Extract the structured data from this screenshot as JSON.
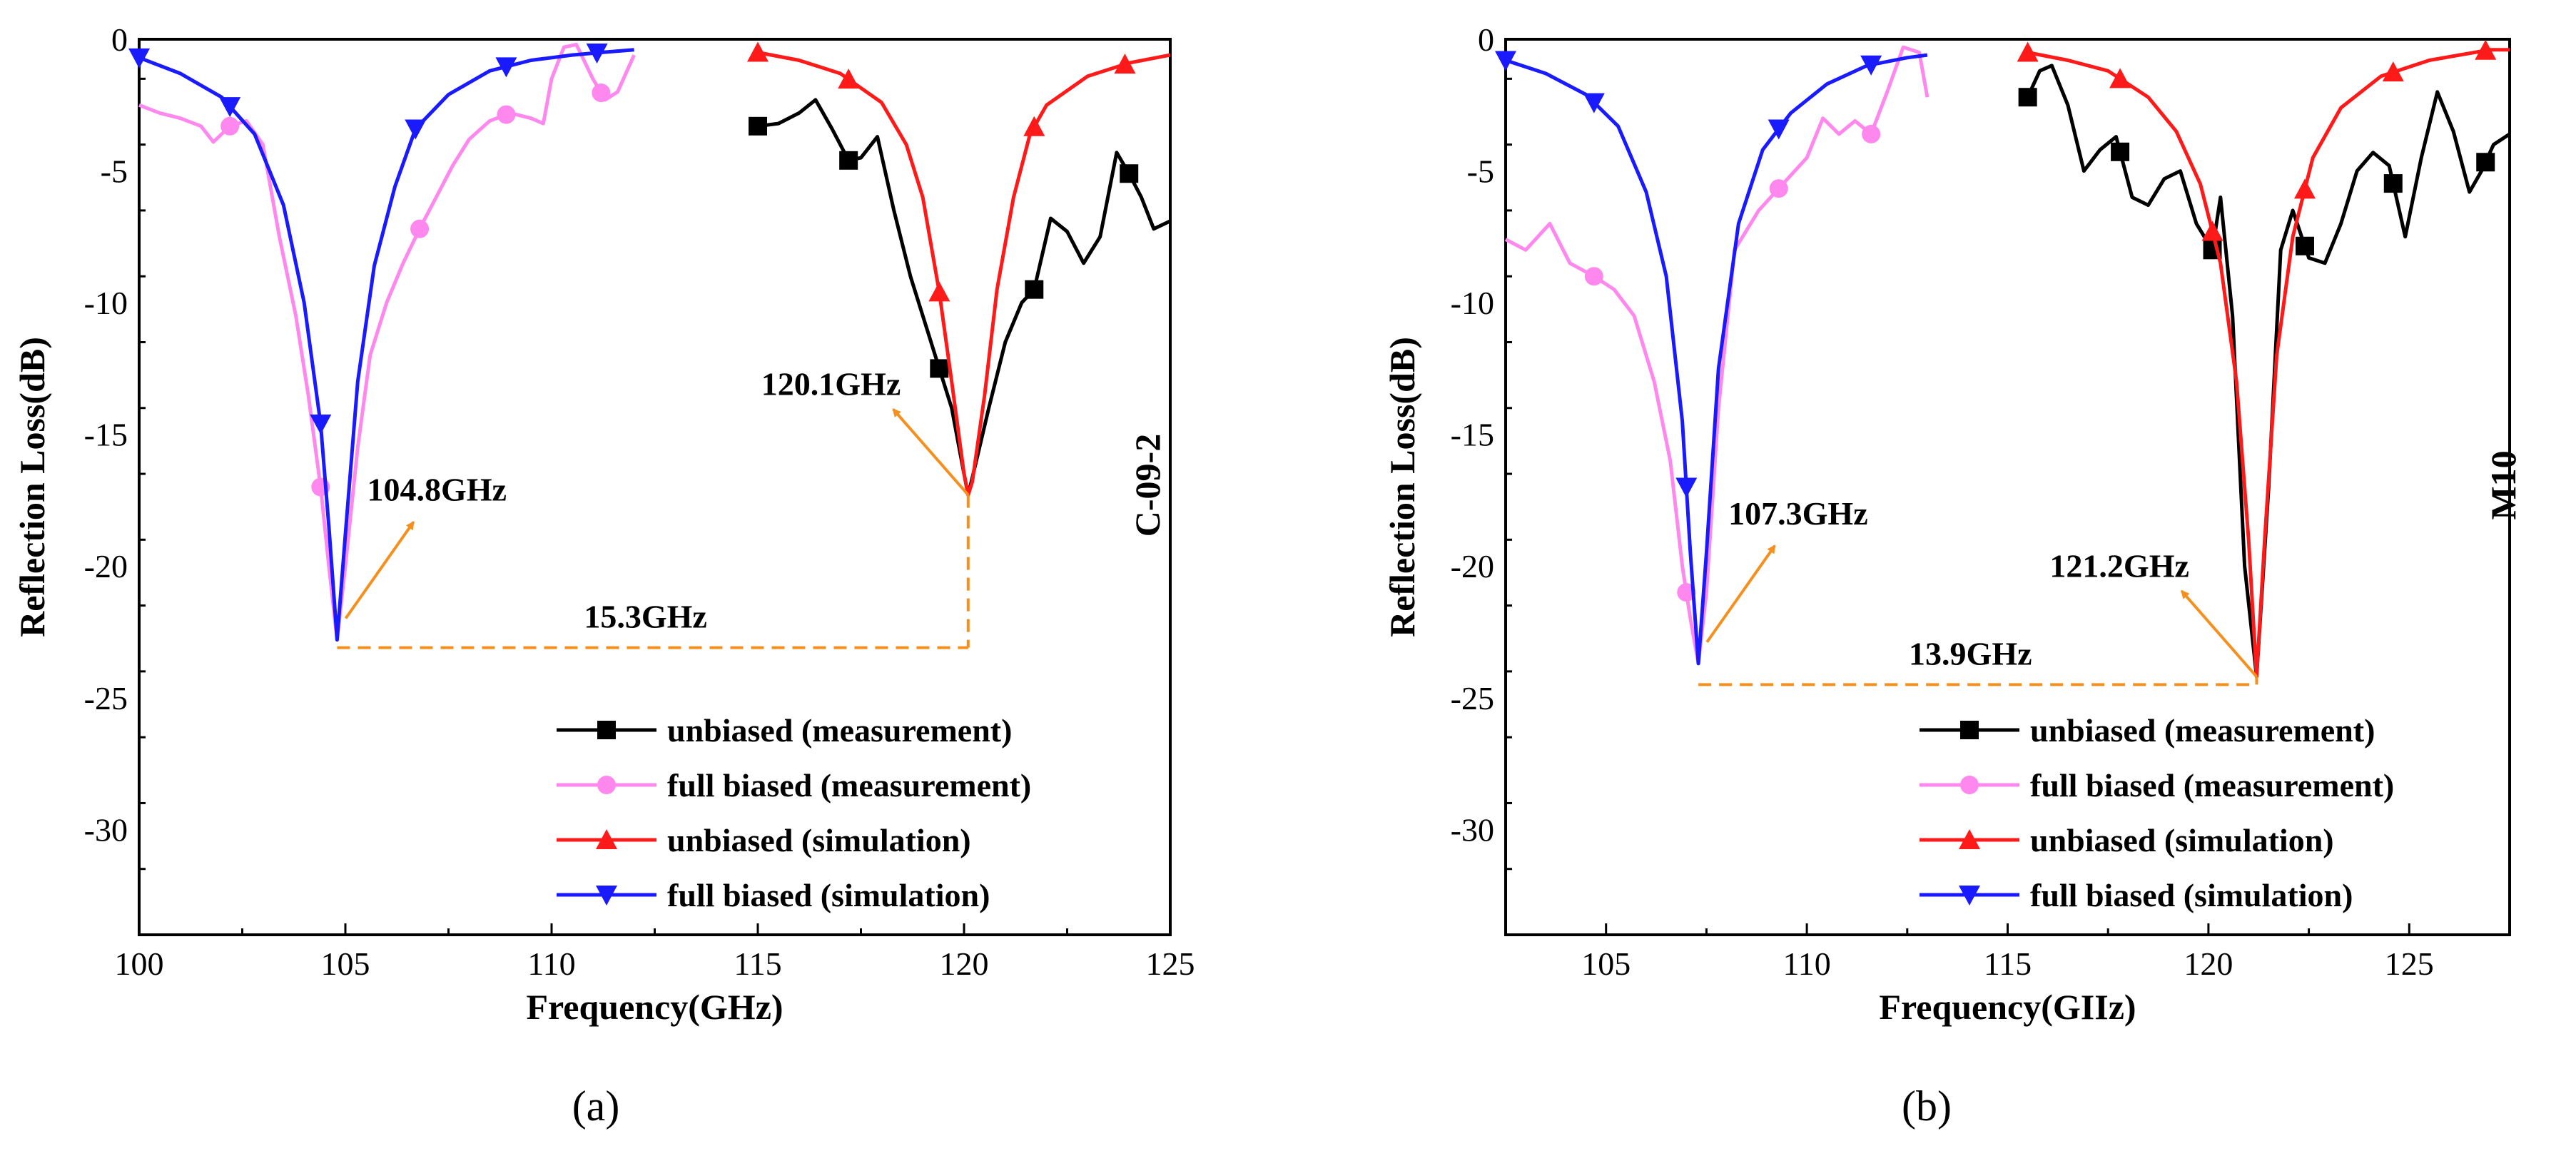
{
  "colors": {
    "unbiased_measurement": "#000000",
    "full_biased_measurement": "#ff88ee",
    "unbiased_simulation": "#ff1a1a",
    "full_biased_simulation": "#1a1aff",
    "annotation": "#f5901e"
  },
  "panels": [
    {
      "panel_label": "(a)",
      "sample_label": "C-09-2",
      "xlabel": "Frequency(GHz)",
      "ylabel": "Reflection Loss(dB)",
      "legend": [
        "unbiased  (measurement)",
        "full biased (measurement)",
        "unbiased  (simulation)",
        "full biased (simulation)"
      ],
      "annotations": {
        "peak1": "104.8GHz",
        "peak2": "120.1GHz",
        "gap": "15.3GHz"
      }
    },
    {
      "panel_label": "(b)",
      "sample_label": "M10",
      "xlabel": "Frequency(GIIz)",
      "ylabel": "Reflection Loss(dB)",
      "legend": [
        "unbiased  (measurement)",
        "full biased (measurement)",
        "unbiased  (simulation)",
        "full biased (simulation)"
      ],
      "annotations": {
        "peak1": "107.3GHz",
        "peak2": "121.2GHz",
        "gap": "13.9GHz"
      }
    }
  ],
  "chart_data": [
    {
      "type": "line",
      "xlabel": "Frequency(GHz)",
      "ylabel": "Reflection Loss(dB)",
      "xlim": [
        100,
        125
      ],
      "ylim": [
        -34,
        0
      ],
      "xticks": [
        100,
        105,
        110,
        115,
        120,
        125
      ],
      "yticks": [
        0,
        -5,
        -10,
        -15,
        -20,
        -25,
        -30
      ],
      "legend_position": "bottom-right",
      "series": [
        {
          "name": "unbiased  (measurement)",
          "x": [
            115.0,
            115.5,
            116.0,
            116.4,
            116.8,
            117.2,
            117.5,
            117.9,
            118.3,
            118.7,
            119.1,
            119.4,
            119.7,
            120.0,
            120.1,
            120.3,
            120.6,
            121.0,
            121.4,
            121.7,
            122.1,
            122.5,
            122.9,
            123.3,
            123.7,
            124.0,
            124.3,
            124.6,
            125.0
          ],
          "y": [
            -3.3,
            -3.2,
            -2.8,
            -2.3,
            -3.4,
            -4.6,
            -4.5,
            -3.7,
            -6.5,
            -9.0,
            -11.0,
            -12.5,
            -14.0,
            -16.5,
            -17.3,
            -16.0,
            -14.0,
            -11.5,
            -10.0,
            -9.5,
            -6.8,
            -7.3,
            -8.5,
            -7.5,
            -4.3,
            -5.1,
            -6.0,
            -7.2,
            -6.9
          ],
          "marker_x": [
            115.0,
            117.2,
            119.4,
            121.7,
            124.0
          ]
        },
        {
          "name": "full biased (measurement)",
          "x": [
            100.0,
            100.5,
            101.0,
            101.5,
            101.8,
            102.2,
            102.6,
            103.0,
            103.4,
            103.8,
            104.1,
            104.4,
            104.6,
            104.8,
            105.0,
            105.3,
            105.6,
            106.0,
            106.4,
            106.8,
            107.2,
            107.6,
            108.0,
            108.5,
            109.0,
            109.5,
            109.8,
            110.0,
            110.3,
            110.6,
            111.0,
            111.3,
            111.6,
            112.0
          ],
          "y": [
            -2.5,
            -2.8,
            -3.0,
            -3.3,
            -3.9,
            -3.3,
            -3.1,
            -4.0,
            -7.5,
            -10.5,
            -13.5,
            -17.0,
            -20.0,
            -22.8,
            -20.0,
            -15.5,
            -12.0,
            -10.0,
            -8.5,
            -7.2,
            -6.0,
            -4.8,
            -3.8,
            -3.1,
            -2.8,
            -3.0,
            -3.2,
            -1.5,
            -0.3,
            -0.2,
            -1.5,
            -2.3,
            -2.0,
            -0.6
          ],
          "marker_x": [
            102.2,
            104.4,
            106.8,
            108.9,
            111.2
          ]
        },
        {
          "name": "unbiased  (simulation)",
          "x": [
            115.0,
            116.0,
            117.0,
            118.0,
            118.6,
            119.0,
            119.4,
            119.7,
            120.0,
            120.1,
            120.2,
            120.5,
            120.8,
            121.2,
            121.6,
            122.0,
            123.0,
            124.0,
            125.0
          ],
          "y": [
            -0.5,
            -0.8,
            -1.3,
            -2.4,
            -4.0,
            -6.0,
            -9.6,
            -13.0,
            -16.5,
            -17.3,
            -16.8,
            -13.5,
            -9.5,
            -6.0,
            -3.6,
            -2.5,
            -1.4,
            -0.9,
            -0.6
          ],
          "marker_x": [
            115.0,
            117.2,
            119.4,
            121.7,
            123.9
          ]
        },
        {
          "name": "full biased (simulation)",
          "x": [
            100.0,
            101.0,
            102.0,
            102.8,
            103.5,
            104.0,
            104.4,
            104.6,
            104.8,
            105.0,
            105.3,
            105.7,
            106.2,
            106.7,
            107.5,
            108.5,
            109.5,
            110.5,
            111.2,
            112.0
          ],
          "y": [
            -0.7,
            -1.3,
            -2.2,
            -3.6,
            -6.3,
            -10.0,
            -14.6,
            -18.5,
            -22.8,
            -18.8,
            -13.0,
            -8.6,
            -5.6,
            -3.4,
            -2.1,
            -1.2,
            -0.8,
            -0.6,
            -0.5,
            -0.4
          ],
          "marker_x": [
            100.0,
            102.2,
            104.4,
            106.7,
            108.9,
            111.1
          ]
        }
      ]
    },
    {
      "type": "line",
      "xlabel": "Frequency(GIIz)",
      "ylabel": "Reflection Loss(dB)",
      "xlim": [
        102.5,
        127.5
      ],
      "ylim": [
        -34,
        0
      ],
      "xticks": [
        105,
        110,
        115,
        120,
        125
      ],
      "yticks": [
        0,
        -5,
        -10,
        -15,
        -20,
        -25,
        -30
      ],
      "legend_position": "bottom-right",
      "series": [
        {
          "name": "unbiased  (measurement)",
          "x": [
            115.5,
            115.8,
            116.1,
            116.5,
            116.9,
            117.3,
            117.7,
            118.1,
            118.5,
            118.9,
            119.3,
            119.7,
            120.1,
            120.3,
            120.6,
            120.9,
            121.2,
            121.5,
            121.8,
            122.1,
            122.5,
            122.9,
            123.3,
            123.7,
            124.1,
            124.5,
            124.9,
            125.3,
            125.7,
            126.1,
            126.5,
            126.8,
            127.1,
            127.5
          ],
          "y": [
            -2.2,
            -1.2,
            -1.0,
            -2.5,
            -5.0,
            -4.2,
            -3.7,
            -6.0,
            -6.3,
            -5.3,
            -5.0,
            -7.0,
            -8.0,
            -6.0,
            -10.5,
            -20.0,
            -24.2,
            -17.0,
            -8.0,
            -6.5,
            -8.3,
            -8.5,
            -7.0,
            -5.0,
            -4.3,
            -4.8,
            -7.5,
            -4.5,
            -2.0,
            -3.5,
            -5.8,
            -5.0,
            -4.0,
            -3.6
          ],
          "marker_x": [
            115.5,
            117.8,
            120.1,
            122.4,
            124.6,
            126.9
          ]
        },
        {
          "name": "full biased (measurement)",
          "x": [
            102.5,
            103.0,
            103.6,
            104.1,
            104.7,
            105.2,
            105.7,
            106.2,
            106.6,
            106.9,
            107.1,
            107.3,
            107.5,
            107.8,
            108.2,
            108.8,
            109.4,
            110.0,
            110.4,
            110.8,
            111.2,
            111.6,
            112.0,
            112.4,
            112.8,
            113.0
          ],
          "y": [
            -7.6,
            -8.0,
            -7.0,
            -8.5,
            -9.0,
            -9.5,
            -10.5,
            -13.0,
            -16.0,
            -20.0,
            -22.0,
            -23.7,
            -21.0,
            -14.0,
            -8.0,
            -6.5,
            -5.5,
            -4.5,
            -3.0,
            -3.6,
            -3.1,
            -3.6,
            -2.0,
            -0.3,
            -0.5,
            -2.2
          ],
          "marker_x": [
            104.7,
            107.0,
            109.3,
            111.6
          ]
        },
        {
          "name": "unbiased  (simulation)",
          "x": [
            115.5,
            116.5,
            117.5,
            118.5,
            119.2,
            119.8,
            120.3,
            120.7,
            121.0,
            121.2,
            121.4,
            121.7,
            122.1,
            122.6,
            123.3,
            124.3,
            125.5,
            127.0,
            127.5
          ],
          "y": [
            -0.5,
            -0.8,
            -1.2,
            -2.2,
            -3.5,
            -5.5,
            -8.5,
            -13.0,
            -19.0,
            -24.2,
            -19.0,
            -12.0,
            -7.5,
            -4.5,
            -2.6,
            -1.4,
            -0.8,
            -0.4,
            -0.4
          ],
          "marker_x": [
            115.5,
            117.8,
            120.1,
            122.4,
            124.6,
            126.9
          ]
        },
        {
          "name": "full biased (simulation)",
          "x": [
            102.5,
            103.5,
            104.5,
            105.3,
            106.0,
            106.5,
            106.9,
            107.1,
            107.3,
            107.5,
            107.8,
            108.3,
            108.9,
            109.6,
            110.5,
            111.5,
            112.5,
            113.0
          ],
          "y": [
            -0.8,
            -1.3,
            -2.1,
            -3.3,
            -5.8,
            -9.0,
            -14.5,
            -19.5,
            -23.7,
            -19.5,
            -12.5,
            -7.0,
            -4.2,
            -2.8,
            -1.7,
            -1.0,
            -0.7,
            -0.6
          ],
          "marker_x": [
            102.5,
            104.7,
            107.0,
            109.3,
            111.6
          ]
        }
      ]
    }
  ]
}
